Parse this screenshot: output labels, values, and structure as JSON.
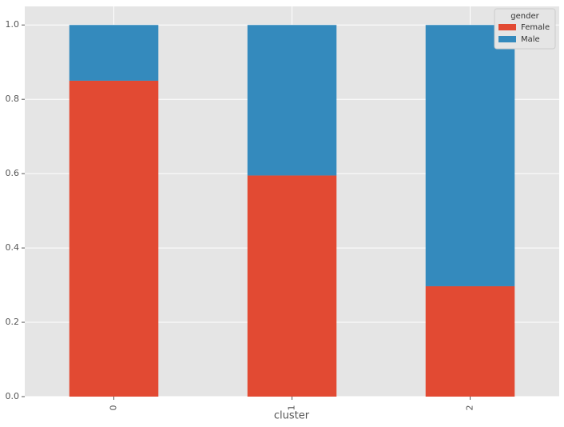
{
  "chart_data": {
    "type": "stacked-bar",
    "x_label": "cluster",
    "categories": [
      "0",
      "1",
      "2"
    ],
    "series": [
      {
        "name": "Female",
        "color": "#E24A33",
        "values": [
          0.85,
          0.595,
          0.297
        ]
      },
      {
        "name": "Male",
        "color": "#348ABD",
        "values": [
          0.15,
          0.405,
          0.703
        ]
      }
    ],
    "ylim": [
      0,
      1.05
    ],
    "yticks": [
      {
        "value": 0,
        "label": "0.0"
      },
      0.2,
      0.4,
      0.6,
      0.8,
      {
        "value": 1,
        "label": "1.0"
      }
    ],
    "grid": true,
    "legend_title": "gender",
    "legend_position": "upper-right"
  }
}
